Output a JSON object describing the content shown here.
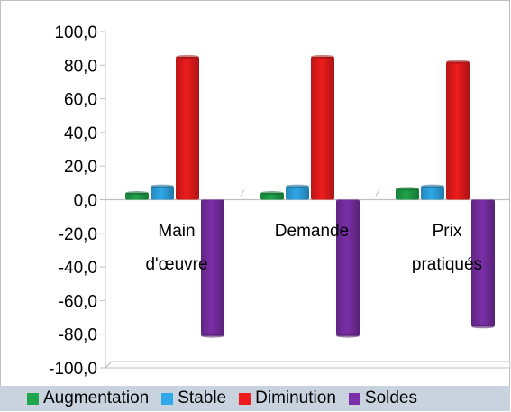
{
  "chart_data": {
    "type": "bar",
    "categories": [
      "Main d'œuvre",
      "Demande",
      "Prix pratiqués"
    ],
    "category_lines": [
      [
        "Main",
        "d'œuvre"
      ],
      [
        "Demande"
      ],
      [
        "Prix",
        "pratiqués"
      ]
    ],
    "series": [
      {
        "name": "Augmentation",
        "color": "#1fa54a",
        "values": [
          4.0,
          4.0,
          6.5
        ]
      },
      {
        "name": "Stable",
        "color": "#2fa9e9",
        "values": [
          8.0,
          8.0,
          8.0
        ]
      },
      {
        "name": "Diminution",
        "color": "#ee1c1c",
        "values": [
          85.0,
          85.0,
          82.0
        ]
      },
      {
        "name": "Soldes",
        "color": "#7b2fa8",
        "values": [
          -81.0,
          -81.0,
          -75.5
        ]
      }
    ],
    "ylim": [
      -100,
      100
    ],
    "yticks": [
      "100,0",
      "80,0",
      "60,0",
      "40,0",
      "20,0",
      "0,0",
      "-20,0",
      "-40,0",
      "-60,0",
      "-80,0",
      "-100,0"
    ],
    "ytick_values": [
      100,
      80,
      60,
      40,
      20,
      0,
      -20,
      -40,
      -60,
      -80,
      -100
    ],
    "legend_position": "bottom",
    "grid": false
  }
}
